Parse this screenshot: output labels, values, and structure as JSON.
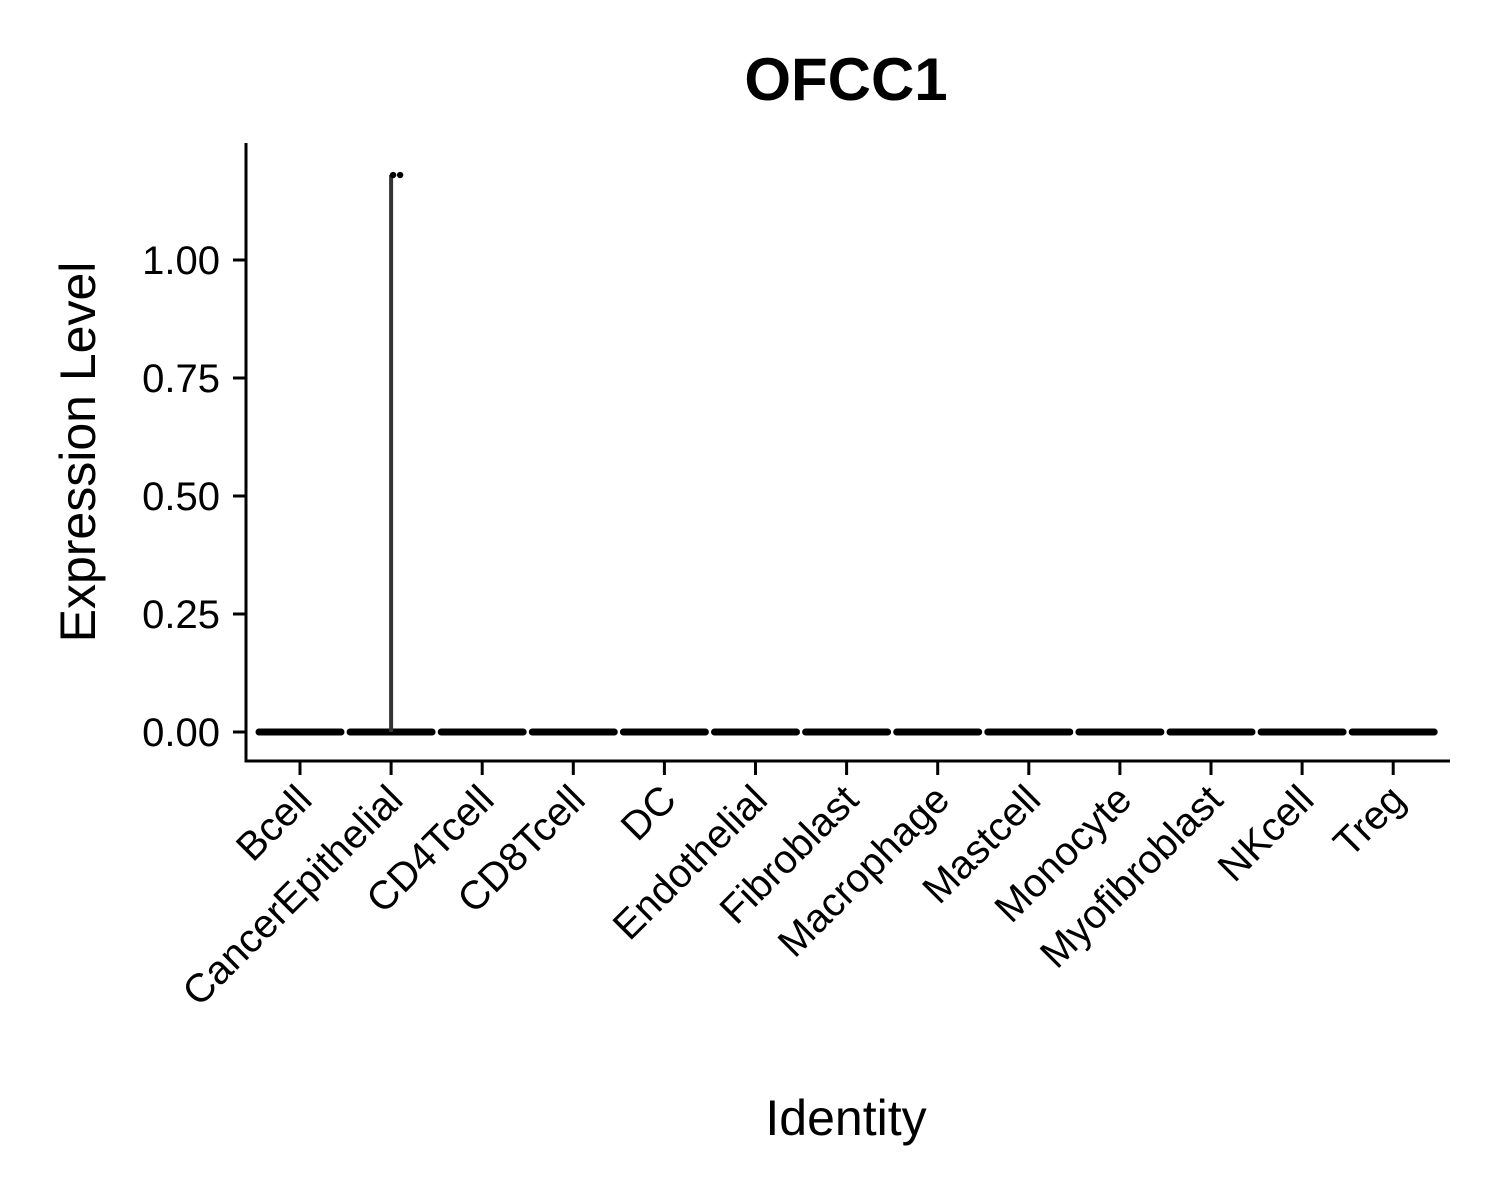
{
  "chart_data": {
    "type": "violin",
    "title": "OFCC1",
    "xlabel": "Identity",
    "ylabel": "Expression Level",
    "categories": [
      "Bcell",
      "CancerEpithelial",
      "CD4Tcell",
      "CD8Tcell",
      "DC",
      "Endothelial",
      "Fibroblast",
      "Macrophage",
      "Mastcell",
      "Monocyte",
      "Myofibroblast",
      "NKcell",
      "Treg"
    ],
    "max_values": [
      0,
      1.18,
      0,
      0,
      0,
      0,
      0,
      0,
      0,
      0,
      0,
      0,
      0
    ],
    "outlier_points": [
      {
        "category": "CancerEpithelial",
        "y": 1.18
      },
      {
        "category": "CancerEpithelial",
        "y": 1.18
      }
    ],
    "yticks": [
      0.0,
      0.25,
      0.5,
      0.75,
      1.0
    ],
    "ytick_labels": [
      "0.00",
      "0.25",
      "0.50",
      "0.75",
      "1.00"
    ],
    "ylim": [
      -0.06,
      1.24
    ],
    "grid": false,
    "legend": "none",
    "colors": {
      "violin": "#000000",
      "background": "#ffffff"
    }
  }
}
